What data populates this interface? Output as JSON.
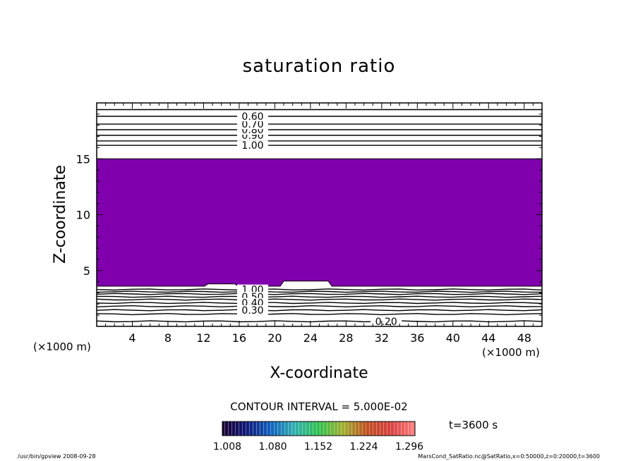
{
  "chart_data": {
    "type": "contour",
    "title": "saturation ratio",
    "xlabel": "X-coordinate",
    "ylabel": "Z-coordinate",
    "x_unit": "(×1000 m)",
    "x_unit_right": "(×1000 m)",
    "xlim": [
      0,
      50
    ],
    "ylim": [
      0,
      20
    ],
    "x_ticks": [
      4,
      8,
      12,
      16,
      20,
      24,
      28,
      32,
      36,
      40,
      44,
      48
    ],
    "y_ticks": [
      5,
      10,
      15
    ],
    "filled_region": {
      "color": "#8000ad",
      "z_bottom": 3.6,
      "z_top": 15.0,
      "bumps": [
        {
          "x_start": 12.5,
          "x_end": 15.5,
          "z": 3.8
        },
        {
          "x_start": 21.0,
          "x_end": 26.0,
          "z": 4.05
        }
      ]
    },
    "upper_contours": [
      {
        "z": 16.2,
        "label": "1.00"
      },
      {
        "z": 16.6,
        "label": ""
      },
      {
        "z": 17.1,
        "label": "0.90"
      },
      {
        "z": 17.6,
        "label": "0.80"
      },
      {
        "z": 18.1,
        "label": "0.70"
      },
      {
        "z": 18.8,
        "label": "0.60"
      },
      {
        "z": 19.4,
        "label": ""
      }
    ],
    "lower_contours": [
      {
        "z": 3.3,
        "label": "1.00"
      },
      {
        "z": 3.1,
        "label": ""
      },
      {
        "z": 2.9,
        "label": ""
      },
      {
        "z": 2.65,
        "label": "0.50"
      },
      {
        "z": 2.4,
        "label": ""
      },
      {
        "z": 2.1,
        "label": "0.40"
      },
      {
        "z": 1.8,
        "label": ""
      },
      {
        "z": 1.45,
        "label": "0.30"
      },
      {
        "z": 1.1,
        "label": ""
      },
      {
        "z": 0.45,
        "label": "0.20"
      }
    ],
    "contour_interval": "CONTOUR INTERVAL = 5.000E-02",
    "colorbar": {
      "labels": [
        "1.008",
        "1.080",
        "1.152",
        "1.224",
        "1.296"
      ],
      "colors": [
        "#1a0030",
        "#101878",
        "#1060c0",
        "#30b0b0",
        "#30c050",
        "#a0b030",
        "#c05020",
        "#d84040",
        "#ff8080"
      ]
    },
    "time_label": "t=3600 s"
  },
  "footer": {
    "left": "/usr/bin/gpview   2008-09-28",
    "right": "MarsCond_SatRatio.nc@SatRatio,x=0:50000,z=0:20000,t=3600"
  }
}
